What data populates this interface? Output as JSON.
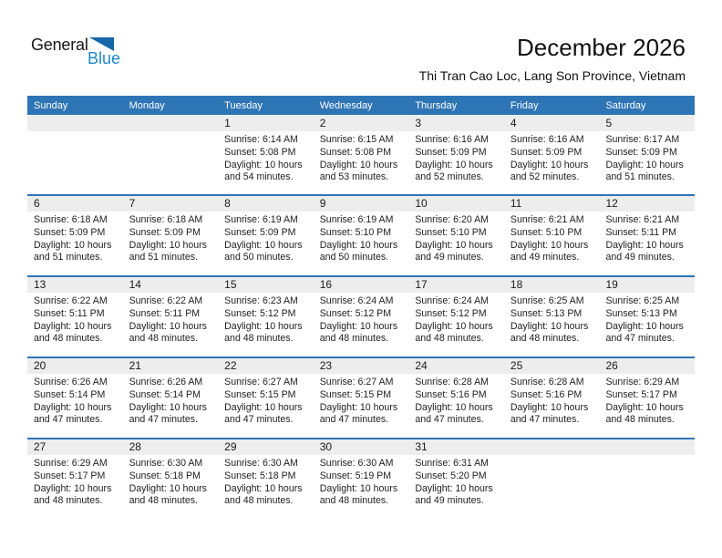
{
  "logo": {
    "part1": "General",
    "part2": "Blue"
  },
  "header": {
    "title": "December 2026",
    "subtitle": "Thi Tran Cao Loc, Lang Son Province, Vietnam"
  },
  "colors": {
    "header_bg": "#2E75B6",
    "divider": "#2E75B6",
    "strip_bg": "#EDEDED",
    "logo_blue": "#1E88C7",
    "logo_triangle": "#1565A9"
  },
  "labels": {
    "sunrise": "Sunrise:",
    "sunset": "Sunset:",
    "daylight": "Daylight:"
  },
  "weekdays": [
    "Sunday",
    "Monday",
    "Tuesday",
    "Wednesday",
    "Thursday",
    "Friday",
    "Saturday"
  ],
  "weeks": [
    [
      null,
      null,
      {
        "day": "1",
        "sunrise": "6:14 AM",
        "sunset": "5:08 PM",
        "daylight1": "10 hours",
        "daylight2": "and 54 minutes."
      },
      {
        "day": "2",
        "sunrise": "6:15 AM",
        "sunset": "5:08 PM",
        "daylight1": "10 hours",
        "daylight2": "and 53 minutes."
      },
      {
        "day": "3",
        "sunrise": "6:16 AM",
        "sunset": "5:09 PM",
        "daylight1": "10 hours",
        "daylight2": "and 52 minutes."
      },
      {
        "day": "4",
        "sunrise": "6:16 AM",
        "sunset": "5:09 PM",
        "daylight1": "10 hours",
        "daylight2": "and 52 minutes."
      },
      {
        "day": "5",
        "sunrise": "6:17 AM",
        "sunset": "5:09 PM",
        "daylight1": "10 hours",
        "daylight2": "and 51 minutes."
      }
    ],
    [
      {
        "day": "6",
        "sunrise": "6:18 AM",
        "sunset": "5:09 PM",
        "daylight1": "10 hours",
        "daylight2": "and 51 minutes."
      },
      {
        "day": "7",
        "sunrise": "6:18 AM",
        "sunset": "5:09 PM",
        "daylight1": "10 hours",
        "daylight2": "and 51 minutes."
      },
      {
        "day": "8",
        "sunrise": "6:19 AM",
        "sunset": "5:09 PM",
        "daylight1": "10 hours",
        "daylight2": "and 50 minutes."
      },
      {
        "day": "9",
        "sunrise": "6:19 AM",
        "sunset": "5:10 PM",
        "daylight1": "10 hours",
        "daylight2": "and 50 minutes."
      },
      {
        "day": "10",
        "sunrise": "6:20 AM",
        "sunset": "5:10 PM",
        "daylight1": "10 hours",
        "daylight2": "and 49 minutes."
      },
      {
        "day": "11",
        "sunrise": "6:21 AM",
        "sunset": "5:10 PM",
        "daylight1": "10 hours",
        "daylight2": "and 49 minutes."
      },
      {
        "day": "12",
        "sunrise": "6:21 AM",
        "sunset": "5:11 PM",
        "daylight1": "10 hours",
        "daylight2": "and 49 minutes."
      }
    ],
    [
      {
        "day": "13",
        "sunrise": "6:22 AM",
        "sunset": "5:11 PM",
        "daylight1": "10 hours",
        "daylight2": "and 48 minutes."
      },
      {
        "day": "14",
        "sunrise": "6:22 AM",
        "sunset": "5:11 PM",
        "daylight1": "10 hours",
        "daylight2": "and 48 minutes."
      },
      {
        "day": "15",
        "sunrise": "6:23 AM",
        "sunset": "5:12 PM",
        "daylight1": "10 hours",
        "daylight2": "and 48 minutes."
      },
      {
        "day": "16",
        "sunrise": "6:24 AM",
        "sunset": "5:12 PM",
        "daylight1": "10 hours",
        "daylight2": "and 48 minutes."
      },
      {
        "day": "17",
        "sunrise": "6:24 AM",
        "sunset": "5:12 PM",
        "daylight1": "10 hours",
        "daylight2": "and 48 minutes."
      },
      {
        "day": "18",
        "sunrise": "6:25 AM",
        "sunset": "5:13 PM",
        "daylight1": "10 hours",
        "daylight2": "and 48 minutes."
      },
      {
        "day": "19",
        "sunrise": "6:25 AM",
        "sunset": "5:13 PM",
        "daylight1": "10 hours",
        "daylight2": "and 47 minutes."
      }
    ],
    [
      {
        "day": "20",
        "sunrise": "6:26 AM",
        "sunset": "5:14 PM",
        "daylight1": "10 hours",
        "daylight2": "and 47 minutes."
      },
      {
        "day": "21",
        "sunrise": "6:26 AM",
        "sunset": "5:14 PM",
        "daylight1": "10 hours",
        "daylight2": "and 47 minutes."
      },
      {
        "day": "22",
        "sunrise": "6:27 AM",
        "sunset": "5:15 PM",
        "daylight1": "10 hours",
        "daylight2": "and 47 minutes."
      },
      {
        "day": "23",
        "sunrise": "6:27 AM",
        "sunset": "5:15 PM",
        "daylight1": "10 hours",
        "daylight2": "and 47 minutes."
      },
      {
        "day": "24",
        "sunrise": "6:28 AM",
        "sunset": "5:16 PM",
        "daylight1": "10 hours",
        "daylight2": "and 47 minutes."
      },
      {
        "day": "25",
        "sunrise": "6:28 AM",
        "sunset": "5:16 PM",
        "daylight1": "10 hours",
        "daylight2": "and 47 minutes."
      },
      {
        "day": "26",
        "sunrise": "6:29 AM",
        "sunset": "5:17 PM",
        "daylight1": "10 hours",
        "daylight2": "and 48 minutes."
      }
    ],
    [
      {
        "day": "27",
        "sunrise": "6:29 AM",
        "sunset": "5:17 PM",
        "daylight1": "10 hours",
        "daylight2": "and 48 minutes."
      },
      {
        "day": "28",
        "sunrise": "6:30 AM",
        "sunset": "5:18 PM",
        "daylight1": "10 hours",
        "daylight2": "and 48 minutes."
      },
      {
        "day": "29",
        "sunrise": "6:30 AM",
        "sunset": "5:18 PM",
        "daylight1": "10 hours",
        "daylight2": "and 48 minutes."
      },
      {
        "day": "30",
        "sunrise": "6:30 AM",
        "sunset": "5:19 PM",
        "daylight1": "10 hours",
        "daylight2": "and 48 minutes."
      },
      {
        "day": "31",
        "sunrise": "6:31 AM",
        "sunset": "5:20 PM",
        "daylight1": "10 hours",
        "daylight2": "and 49 minutes."
      },
      null,
      null
    ]
  ]
}
